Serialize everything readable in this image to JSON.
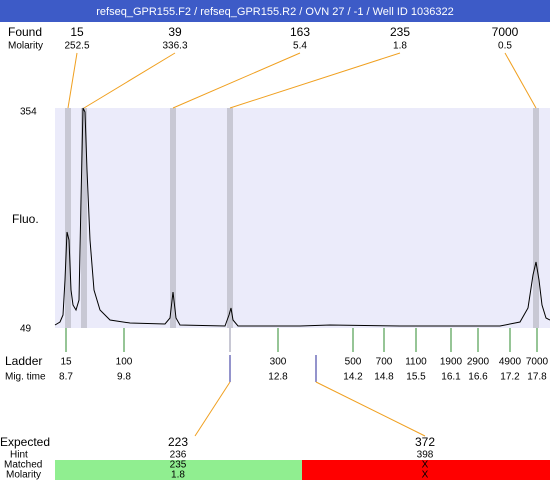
{
  "title": "refseq_GPR155.F2 / refseq_GPR155.R2 / OVN 27 / -1 / Well ID 1036322",
  "found": {
    "label": "Found",
    "sub_label": "Molarity",
    "peaks": [
      {
        "size": 15,
        "molarity": 252.5
      },
      {
        "size": 39,
        "molarity": 336.3
      },
      {
        "size": 163,
        "molarity": 5.4
      },
      {
        "size": 235,
        "molarity": 1.8
      },
      {
        "size": 7000,
        "molarity": 0.5
      }
    ]
  },
  "plot": {
    "y_label": "Fluo.",
    "y_max": 354,
    "y_min": 49
  },
  "ladder": {
    "label": "Ladder",
    "sub_label": "Mig. time",
    "sizes": [
      15,
      100,
      300,
      500,
      700,
      1100,
      1900,
      2900,
      4900,
      7000
    ],
    "times": [
      8.7,
      9.8,
      12.8,
      14.2,
      14.8,
      15.5,
      16.1,
      16.6,
      17.2,
      17.8
    ]
  },
  "expected": {
    "label": "Expected",
    "hint_label": "Hint",
    "matched_label": "Matched",
    "molarity_label": "Molarity",
    "items": [
      {
        "size": 223,
        "hint": 236,
        "matched": 235,
        "molarity": 1.8
      },
      {
        "size": 372,
        "hint": 398,
        "matched": "X",
        "molarity": "X"
      }
    ]
  }
}
